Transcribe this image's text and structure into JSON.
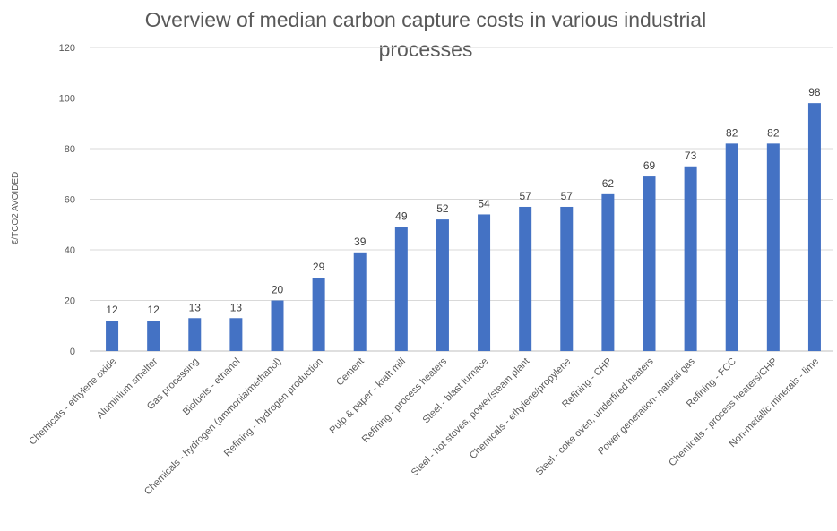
{
  "chart_data": {
    "type": "bar",
    "title": "Overview of median carbon capture costs in various industrial processes",
    "xlabel": "",
    "ylabel": "€/TCO2 AVOIDED",
    "ylim": [
      0,
      120
    ],
    "yticks": [
      0,
      20,
      40,
      60,
      80,
      100,
      120
    ],
    "grid": true,
    "legend": "none",
    "bar_color": "#4472C4",
    "grid_color": "#D9D9D9",
    "categories": [
      "Chemicals - ethylene oxide",
      "Aluminium smelter",
      "Gas processing",
      "Biofuels - ethanol",
      "Chemicals - hydrogen (ammonia/methanol)",
      "Refining - hydrogen production",
      "Cement",
      "Pulp & paper - kraft mill",
      "Refining - process heaters",
      "Steel - blast furnace",
      "Steel - hot stoves, power/steam plant",
      "Chemicals - ethylene/propylene",
      "Refining - CHP",
      "Steel - coke oven, underfired heaters",
      "Power generation- natural gas",
      "Refining - FCC",
      "Chemicals - process heaters/CHP",
      "Non-metallic minerals - lime"
    ],
    "values": [
      12,
      12,
      13,
      13,
      20,
      29,
      39,
      49,
      52,
      54,
      57,
      57,
      62,
      69,
      73,
      82,
      82,
      98
    ]
  }
}
